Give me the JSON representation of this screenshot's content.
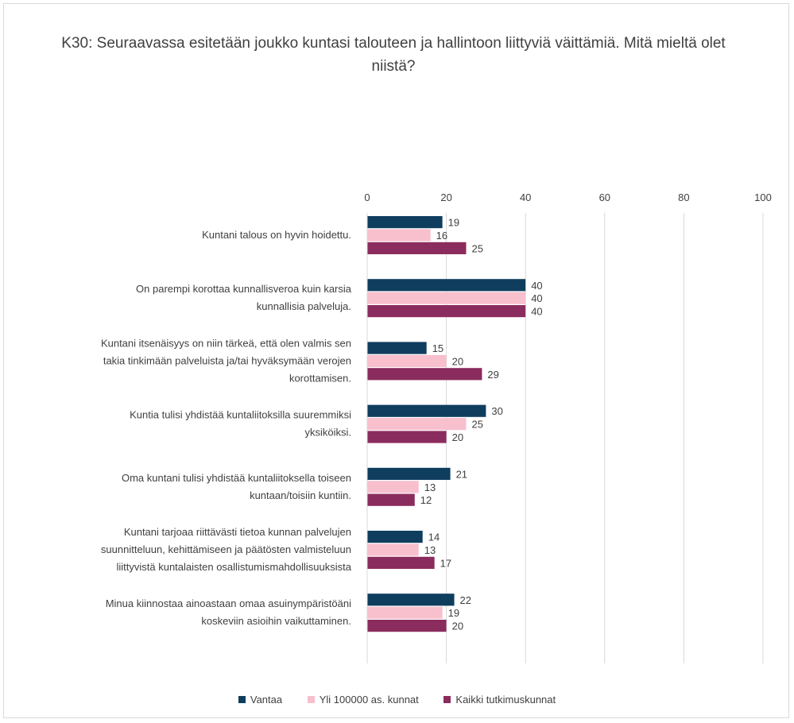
{
  "chart_data": {
    "type": "bar",
    "orientation": "horizontal",
    "title": "K30: Seuraavassa esitetään joukko kuntasi talouteen ja hallintoon liittyviä väittämiä. Mitä mieltä olet niistä?",
    "xlim": [
      0,
      100
    ],
    "xticks": [
      "0",
      "20",
      "40",
      "60",
      "80",
      "100"
    ],
    "grid": true,
    "legend_position": "bottom",
    "categories": [
      [
        "Kuntani talous on hyvin hoidettu."
      ],
      [
        "On parempi korottaa kunnallisveroa kuin karsia",
        "kunnallisia palveluja."
      ],
      [
        "Kuntani itsenäisyys on niin tärkeä, että olen valmis sen",
        "takia tinkimään palveluista ja/tai hyväksymään verojen",
        "korottamisen."
      ],
      [
        "Kuntia tulisi yhdistää kuntaliitoksilla suuremmiksi",
        "yksiköiksi."
      ],
      [
        "Oma kuntani tulisi yhdistää kuntaliitoksella toiseen",
        "kuntaan/toisiin kuntiin."
      ],
      [
        "Kuntani tarjoaa riittävästi tietoa kunnan palvelujen",
        "suunnitteluun, kehittämiseen ja päätösten valmisteluun",
        "liittyvistä kuntalaisten osallistumismahdollisuuksista"
      ],
      [
        "Minua kiinnostaa ainoastaan omaa asuinympäristöäni",
        "koskeviin asioihin vaikuttaminen."
      ]
    ],
    "series": [
      {
        "name": "Vantaa",
        "color": "#0f3d5e",
        "values": [
          19,
          40,
          15,
          30,
          21,
          14,
          22
        ]
      },
      {
        "name": "Yli 100000 as. kunnat",
        "color": "#f8bfcd",
        "values": [
          16,
          40,
          20,
          25,
          13,
          13,
          19
        ]
      },
      {
        "name": "Kaikki tutkimuskunnat",
        "color": "#8b2c5e",
        "values": [
          25,
          40,
          29,
          20,
          12,
          17,
          20
        ]
      }
    ]
  }
}
